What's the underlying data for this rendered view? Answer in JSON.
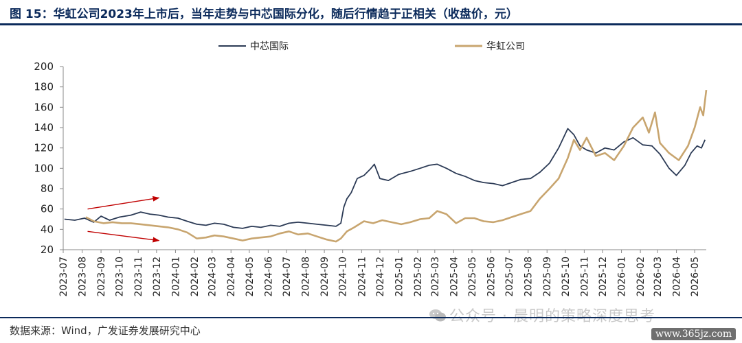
{
  "figure": {
    "title": "图 15：华虹公司2023年上市后，当年走势与中芯国际分化，随后行情趋于正相关（收盘价，元）",
    "source": "数据来源：Wind，广发证券发展研究中心",
    "watermark": "公众号 · 晨明的策略深度思考",
    "site_badge": "www.365jz.com"
  },
  "colors": {
    "smic": "#2b3a55",
    "hua_hong": "#c8a56f",
    "annotation_arrow": "#c00000"
  },
  "chart_data": {
    "type": "line",
    "title": "",
    "xlabel": "",
    "ylabel": "",
    "ylim": [
      20,
      200
    ],
    "yticks": [
      20,
      40,
      60,
      80,
      100,
      120,
      140,
      160,
      180,
      200
    ],
    "xlim": [
      "2023-07",
      "2026-05-20"
    ],
    "x_tick_labels": [
      "2023-07",
      "2023-08",
      "2023-09",
      "2023-10",
      "2023-11",
      "2023-12",
      "2024-01",
      "2024-02",
      "2024-03",
      "2024-04",
      "2024-05",
      "2024-06",
      "2024-07",
      "2024-08",
      "2024-09",
      "2024-10",
      "2024-11",
      "2024-12",
      "2025-01",
      "2025-02",
      "2025-03",
      "2025-04",
      "2025-05",
      "2025-06",
      "2025-07",
      "2025-08",
      "2025-09",
      "2025-10",
      "2025-11",
      "2025-12",
      "2026-01",
      "2026-02",
      "2026-03",
      "2026-04",
      "2026-05"
    ],
    "legend": {
      "position": "top-center"
    },
    "grid": false,
    "series": [
      {
        "name": "中芯国际",
        "color": "#2b3a55",
        "points": [
          [
            "2023-07-03",
            50
          ],
          [
            "2023-07-20",
            49
          ],
          [
            "2023-08-05",
            51
          ],
          [
            "2023-08-20",
            47
          ],
          [
            "2023-09-01",
            53
          ],
          [
            "2023-09-15",
            49
          ],
          [
            "2023-10-01",
            52
          ],
          [
            "2023-10-20",
            54
          ],
          [
            "2023-11-05",
            57
          ],
          [
            "2023-11-20",
            55
          ],
          [
            "2023-12-05",
            54
          ],
          [
            "2023-12-20",
            52
          ],
          [
            "2024-01-05",
            51
          ],
          [
            "2024-01-20",
            48
          ],
          [
            "2024-02-05",
            45
          ],
          [
            "2024-02-20",
            44
          ],
          [
            "2024-03-05",
            46
          ],
          [
            "2024-03-20",
            45
          ],
          [
            "2024-04-05",
            42
          ],
          [
            "2024-04-20",
            41
          ],
          [
            "2024-05-05",
            43
          ],
          [
            "2024-05-20",
            42
          ],
          [
            "2024-06-05",
            44
          ],
          [
            "2024-06-20",
            43
          ],
          [
            "2024-07-05",
            46
          ],
          [
            "2024-07-20",
            47
          ],
          [
            "2024-08-05",
            46
          ],
          [
            "2024-08-20",
            45
          ],
          [
            "2024-09-05",
            44
          ],
          [
            "2024-09-20",
            43
          ],
          [
            "2024-09-28",
            46
          ],
          [
            "2024-10-03",
            62
          ],
          [
            "2024-10-08",
            70
          ],
          [
            "2024-10-15",
            76
          ],
          [
            "2024-10-25",
            90
          ],
          [
            "2024-11-05",
            93
          ],
          [
            "2024-11-15",
            99
          ],
          [
            "2024-11-22",
            104
          ],
          [
            "2024-12-01",
            90
          ],
          [
            "2024-12-15",
            88
          ],
          [
            "2025-01-01",
            94
          ],
          [
            "2025-01-20",
            97
          ],
          [
            "2025-02-05",
            100
          ],
          [
            "2025-02-20",
            103
          ],
          [
            "2025-03-05",
            104
          ],
          [
            "2025-03-20",
            100
          ],
          [
            "2025-04-05",
            95
          ],
          [
            "2025-04-20",
            92
          ],
          [
            "2025-05-05",
            88
          ],
          [
            "2025-05-20",
            86
          ],
          [
            "2025-06-05",
            85
          ],
          [
            "2025-06-20",
            83
          ],
          [
            "2025-07-05",
            86
          ],
          [
            "2025-07-20",
            89
          ],
          [
            "2025-08-05",
            90
          ],
          [
            "2025-08-20",
            96
          ],
          [
            "2025-09-05",
            105
          ],
          [
            "2025-09-20",
            120
          ],
          [
            "2025-10-05",
            139
          ],
          [
            "2025-10-15",
            133
          ],
          [
            "2025-10-25",
            122
          ],
          [
            "2025-11-05",
            118
          ],
          [
            "2025-11-20",
            115
          ],
          [
            "2025-12-05",
            120
          ],
          [
            "2025-12-20",
            118
          ],
          [
            "2026-01-05",
            126
          ],
          [
            "2026-01-20",
            130
          ],
          [
            "2026-02-05",
            123
          ],
          [
            "2026-02-20",
            122
          ],
          [
            "2026-03-05",
            114
          ],
          [
            "2026-03-20",
            100
          ],
          [
            "2026-04-01",
            93
          ],
          [
            "2026-04-15",
            103
          ],
          [
            "2026-04-25",
            115
          ],
          [
            "2026-05-05",
            122
          ],
          [
            "2026-05-12",
            120
          ],
          [
            "2026-05-18",
            128
          ]
        ]
      },
      {
        "name": "华虹公司",
        "color": "#c8a56f",
        "points": [
          [
            "2023-08-07",
            52
          ],
          [
            "2023-08-20",
            48
          ],
          [
            "2023-09-05",
            46
          ],
          [
            "2023-09-20",
            47
          ],
          [
            "2023-10-05",
            46
          ],
          [
            "2023-10-20",
            46
          ],
          [
            "2023-11-05",
            45
          ],
          [
            "2023-11-20",
            44
          ],
          [
            "2023-12-05",
            43
          ],
          [
            "2023-12-20",
            42
          ],
          [
            "2024-01-05",
            40
          ],
          [
            "2024-01-20",
            37
          ],
          [
            "2024-02-05",
            31
          ],
          [
            "2024-02-20",
            32
          ],
          [
            "2024-03-05",
            34
          ],
          [
            "2024-03-20",
            33
          ],
          [
            "2024-04-05",
            31
          ],
          [
            "2024-04-20",
            29
          ],
          [
            "2024-05-05",
            31
          ],
          [
            "2024-05-20",
            32
          ],
          [
            "2024-06-05",
            33
          ],
          [
            "2024-06-20",
            36
          ],
          [
            "2024-07-05",
            38
          ],
          [
            "2024-07-20",
            35
          ],
          [
            "2024-08-05",
            36
          ],
          [
            "2024-08-20",
            33
          ],
          [
            "2024-09-05",
            30
          ],
          [
            "2024-09-20",
            28
          ],
          [
            "2024-09-28",
            31
          ],
          [
            "2024-10-08",
            38
          ],
          [
            "2024-10-20",
            42
          ],
          [
            "2024-11-05",
            48
          ],
          [
            "2024-11-20",
            46
          ],
          [
            "2024-12-05",
            49
          ],
          [
            "2024-12-20",
            47
          ],
          [
            "2025-01-05",
            45
          ],
          [
            "2025-01-20",
            47
          ],
          [
            "2025-02-05",
            50
          ],
          [
            "2025-02-20",
            51
          ],
          [
            "2025-03-05",
            58
          ],
          [
            "2025-03-20",
            55
          ],
          [
            "2025-04-05",
            46
          ],
          [
            "2025-04-20",
            51
          ],
          [
            "2025-05-05",
            51
          ],
          [
            "2025-05-20",
            48
          ],
          [
            "2025-06-05",
            47
          ],
          [
            "2025-06-20",
            49
          ],
          [
            "2025-07-05",
            52
          ],
          [
            "2025-07-20",
            55
          ],
          [
            "2025-08-05",
            58
          ],
          [
            "2025-08-20",
            70
          ],
          [
            "2025-09-05",
            80
          ],
          [
            "2025-09-20",
            90
          ],
          [
            "2025-10-05",
            110
          ],
          [
            "2025-10-15",
            128
          ],
          [
            "2025-10-25",
            118
          ],
          [
            "2025-11-05",
            130
          ],
          [
            "2025-11-20",
            112
          ],
          [
            "2025-12-05",
            115
          ],
          [
            "2025-12-20",
            108
          ],
          [
            "2026-01-05",
            122
          ],
          [
            "2026-01-20",
            140
          ],
          [
            "2026-02-05",
            150
          ],
          [
            "2026-02-15",
            135
          ],
          [
            "2026-02-25",
            155
          ],
          [
            "2026-03-05",
            125
          ],
          [
            "2026-03-20",
            115
          ],
          [
            "2026-04-05",
            108
          ],
          [
            "2026-04-20",
            122
          ],
          [
            "2026-05-01",
            140
          ],
          [
            "2026-05-10",
            160
          ],
          [
            "2026-05-15",
            152
          ],
          [
            "2026-05-20",
            177
          ]
        ]
      }
    ],
    "annotations": [
      {
        "type": "arrow",
        "description": "upward trend arrow",
        "from": [
          "2023-08-10",
          60
        ],
        "to": [
          "2023-12-05",
          71
        ]
      },
      {
        "type": "arrow",
        "description": "downward trend arrow",
        "from": [
          "2023-08-10",
          38
        ],
        "to": [
          "2023-12-05",
          29
        ]
      }
    ]
  }
}
